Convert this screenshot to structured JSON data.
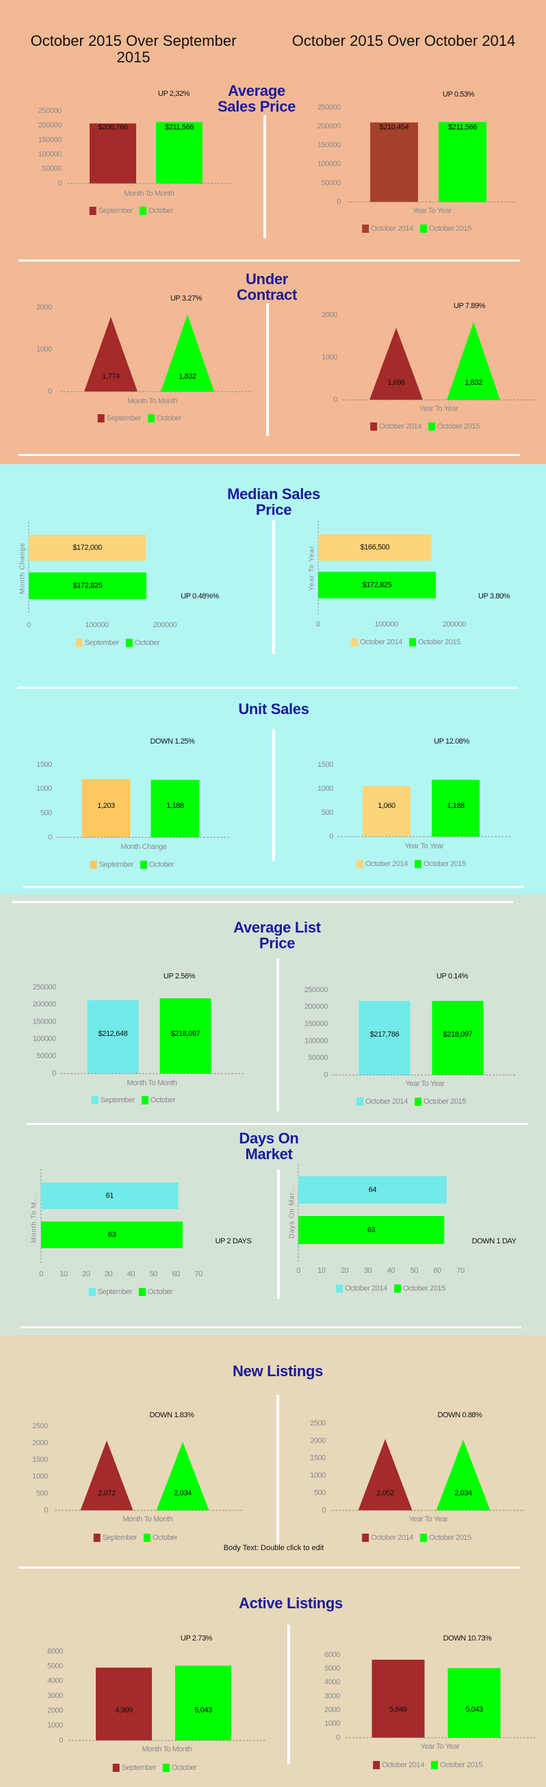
{
  "header": {
    "left": "October 2015 Over September 2015",
    "right": "October 2015 Over October 2014"
  },
  "sections": [
    {
      "title": "Average Sales Price"
    },
    {
      "title": "Under Contract"
    },
    {
      "title": "Median Sales Price"
    },
    {
      "title": "Unit Sales"
    },
    {
      "title": "Average List Price"
    },
    {
      "title": "Days On Market"
    },
    {
      "title": "New Listings"
    },
    {
      "title": "Active Listings"
    }
  ],
  "footer_note": "Body Text: Double click to edit",
  "colors": {
    "section_1": "#f3b995",
    "section_2": "#b2f6f4",
    "section_3": "#d4e3d6",
    "section_4": "#e7d8ba",
    "title": "#1a1a9c",
    "green": "#00ff00",
    "dark_red": "#a52a2a",
    "sienna": "#a5412b",
    "light_orange": "#fdc85f",
    "pale_orange": "#fdd47a",
    "light_cyan": "#72eaea",
    "tick": "#8a8a8a"
  },
  "chart_data": [
    {
      "section": "Average Sales Price",
      "type": "bar",
      "orientation": "vertical",
      "shape": "rect",
      "annotation": "UP 2,32%",
      "xlabel": "Month To Month",
      "ylim": [
        0,
        250000
      ],
      "yticks": [
        "0",
        "50000",
        "100000",
        "150000",
        "200000",
        "250000"
      ],
      "series": [
        {
          "name": "September",
          "value": 206766,
          "label": "$206,766",
          "color": "#a52a2a"
        },
        {
          "name": "October",
          "value": 211566,
          "label": "$211,566",
          "color": "#00ff00"
        }
      ]
    },
    {
      "section": "Average Sales Price",
      "type": "bar",
      "orientation": "vertical",
      "shape": "rect",
      "annotation": "UP 0.53%",
      "xlabel": "Year To Year",
      "ylim": [
        0,
        250000
      ],
      "yticks": [
        "0",
        "50000",
        "100000",
        "150000",
        "200000",
        "250000"
      ],
      "series": [
        {
          "name": "October 2014",
          "value": 210454,
          "label": "$210,454",
          "color": "#a5412b"
        },
        {
          "name": "October 2015",
          "value": 211566,
          "label": "$211,566",
          "color": "#00ff00"
        }
      ]
    },
    {
      "section": "Under Contract",
      "type": "bar",
      "orientation": "vertical",
      "shape": "triangle",
      "annotation": "UP 3.27%",
      "xlabel": "Month To Month",
      "ylim": [
        0,
        2000
      ],
      "yticks": [
        "0",
        "1000",
        "2000"
      ],
      "series": [
        {
          "name": "September",
          "value": 1774,
          "label": "1,774",
          "color": "#a52a2a"
        },
        {
          "name": "October",
          "value": 1832,
          "label": "1,832",
          "color": "#00ff00"
        }
      ]
    },
    {
      "section": "Under Contract",
      "type": "bar",
      "orientation": "vertical",
      "shape": "triangle",
      "annotation": "UP 7.89%",
      "xlabel": "Year To Year",
      "ylim": [
        0,
        2000
      ],
      "yticks": [
        "0",
        "1000",
        "2000"
      ],
      "series": [
        {
          "name": "October 2014",
          "value": 1698,
          "label": "1,698",
          "color": "#a52a2a"
        },
        {
          "name": "October 2015",
          "value": 1832,
          "label": "1,832",
          "color": "#00ff00"
        }
      ]
    },
    {
      "section": "Median Sales Price",
      "type": "bar",
      "orientation": "horizontal",
      "shape": "rect",
      "annotation": "UP 0.48%%",
      "ylabel": "Month Change",
      "xlim": [
        0,
        200000
      ],
      "xticks": [
        "0",
        "100000",
        "200000"
      ],
      "series": [
        {
          "name": "September",
          "value": 172000,
          "label": "$172,000",
          "color": "#fdd47a"
        },
        {
          "name": "October",
          "value": 172825,
          "label": "$172,825",
          "color": "#00ff00"
        }
      ]
    },
    {
      "section": "Median Sales Price",
      "type": "bar",
      "orientation": "horizontal",
      "shape": "rect",
      "annotation": "UP 3.80%",
      "ylabel": "Year To Year",
      "xlim": [
        0,
        200000
      ],
      "xticks": [
        "0",
        "100000",
        "200000"
      ],
      "series": [
        {
          "name": "October 2014",
          "value": 166500,
          "label": "$166,500",
          "color": "#fdd47a"
        },
        {
          "name": "October 2015",
          "value": 172825,
          "label": "$172,825",
          "color": "#00ff00"
        }
      ]
    },
    {
      "section": "Unit Sales",
      "type": "bar",
      "orientation": "vertical",
      "shape": "rect",
      "annotation": "DOWN 1.25%",
      "xlabel": "Month Change",
      "ylim": [
        0,
        1500
      ],
      "yticks": [
        "0",
        "500",
        "1000",
        "1500"
      ],
      "series": [
        {
          "name": "September",
          "value": 1203,
          "label": "1,203",
          "color": "#fdc85f"
        },
        {
          "name": "October",
          "value": 1188,
          "label": "1,188",
          "color": "#00ff00"
        }
      ]
    },
    {
      "section": "Unit Sales",
      "type": "bar",
      "orientation": "vertical",
      "shape": "rect",
      "annotation": "UP 12.08%",
      "xlabel": "Year To Year",
      "ylim": [
        0,
        1500
      ],
      "yticks": [
        "0",
        "500",
        "1000",
        "1500"
      ],
      "series": [
        {
          "name": "October 2014",
          "value": 1060,
          "label": "1,060",
          "color": "#fdd47a"
        },
        {
          "name": "October 2015",
          "value": 1188,
          "label": "1,188",
          "color": "#00ff00"
        }
      ]
    },
    {
      "section": "Average List Price",
      "type": "bar",
      "orientation": "vertical",
      "shape": "rect",
      "annotation": "UP 2.56%",
      "xlabel": "Month To Month",
      "ylim": [
        0,
        250000
      ],
      "yticks": [
        "0",
        "50000",
        "100000",
        "150000",
        "200000",
        "250000"
      ],
      "series": [
        {
          "name": "September",
          "value": 212648,
          "label": "$212,648",
          "color": "#72eaea"
        },
        {
          "name": "October",
          "value": 218097,
          "label": "$218,097",
          "color": "#00ff00"
        }
      ]
    },
    {
      "section": "Average List Price",
      "type": "bar",
      "orientation": "vertical",
      "shape": "rect",
      "annotation": "UP 0.14%",
      "xlabel": "Year To Year",
      "ylim": [
        0,
        250000
      ],
      "yticks": [
        "0",
        "50000",
        "100000",
        "150000",
        "200000",
        "250000"
      ],
      "series": [
        {
          "name": "October 2014",
          "value": 217786,
          "label": "$217,786",
          "color": "#72eaea"
        },
        {
          "name": "October 2015",
          "value": 218097,
          "label": "$218,097",
          "color": "#00ff00"
        }
      ]
    },
    {
      "section": "Days On Market",
      "type": "bar",
      "orientation": "horizontal",
      "shape": "rect",
      "annotation": "UP 2 DAYS",
      "ylabel": "Month To M...",
      "xlim": [
        0,
        70
      ],
      "xticks": [
        "0",
        "10",
        "20",
        "30",
        "40",
        "50",
        "60",
        "70"
      ],
      "series": [
        {
          "name": "September",
          "value": 61,
          "label": "61",
          "color": "#72eaea"
        },
        {
          "name": "October",
          "value": 63,
          "label": "63",
          "color": "#00ff00"
        }
      ]
    },
    {
      "section": "Days On Market",
      "type": "bar",
      "orientation": "horizontal",
      "shape": "rect",
      "annotation": "DOWN 1 DAY",
      "ylabel": "Days On Mar...",
      "xlim": [
        0,
        70
      ],
      "xticks": [
        "0",
        "10",
        "20",
        "30",
        "40",
        "50",
        "60",
        "70"
      ],
      "series": [
        {
          "name": "October 2014",
          "value": 64,
          "label": "64",
          "color": "#72eaea"
        },
        {
          "name": "October 2015",
          "value": 63,
          "label": "63",
          "color": "#00ff00"
        }
      ]
    },
    {
      "section": "New Listings",
      "type": "bar",
      "orientation": "vertical",
      "shape": "triangle",
      "annotation": "DOWN 1.83%",
      "xlabel": "Month To Month",
      "ylim": [
        0,
        2500
      ],
      "yticks": [
        "0",
        "500",
        "1000",
        "1500",
        "2000",
        "2500"
      ],
      "series": [
        {
          "name": "September",
          "value": 2072,
          "label": "2,072",
          "color": "#a52a2a"
        },
        {
          "name": "October",
          "value": 2034,
          "label": "2,034",
          "color": "#00ff00"
        }
      ]
    },
    {
      "section": "New Listings",
      "type": "bar",
      "orientation": "vertical",
      "shape": "triangle",
      "annotation": "DOWN 0.88%",
      "xlabel": "Year To Year",
      "ylim": [
        0,
        2500
      ],
      "yticks": [
        "0",
        "500",
        "1000",
        "1500",
        "2000",
        "2500"
      ],
      "series": [
        {
          "name": "October 2014",
          "value": 2052,
          "label": "2,052",
          "color": "#a52a2a"
        },
        {
          "name": "October 2015",
          "value": 2034,
          "label": "2,034",
          "color": "#00ff00"
        }
      ]
    },
    {
      "section": "Active Listings",
      "type": "bar",
      "orientation": "vertical",
      "shape": "rect",
      "annotation": "UP 2.73%",
      "xlabel": "Month To Month",
      "ylim": [
        0,
        6000
      ],
      "yticks": [
        "0",
        "1000",
        "2000",
        "3000",
        "4000",
        "5000",
        "6000"
      ],
      "series": [
        {
          "name": "September",
          "value": 4909,
          "label": "4,909",
          "color": "#a52a2a"
        },
        {
          "name": "October",
          "value": 5043,
          "label": "5,043",
          "color": "#00ff00"
        }
      ]
    },
    {
      "section": "Active Listings",
      "type": "bar",
      "orientation": "vertical",
      "shape": "rect",
      "annotation": "DOWN 10.73%",
      "xlabel": "Year To Year",
      "ylim": [
        0,
        6000
      ],
      "yticks": [
        "0",
        "1000",
        "2000",
        "3000",
        "4000",
        "5000",
        "6000"
      ],
      "series": [
        {
          "name": "October 2014",
          "value": 5649,
          "label": "5,649",
          "color": "#a52a2a"
        },
        {
          "name": "October 2015",
          "value": 5043,
          "label": "5,043",
          "color": "#00ff00"
        }
      ]
    }
  ]
}
